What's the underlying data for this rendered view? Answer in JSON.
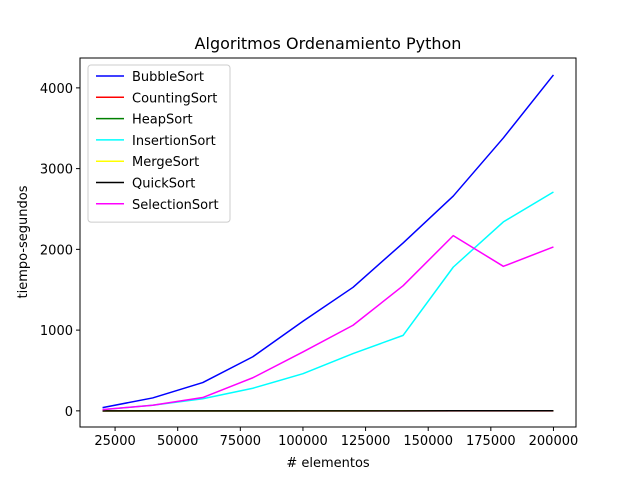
{
  "chart_data": {
    "type": "line",
    "title": "Algoritmos Ordenamiento Python",
    "xlabel": "# elementos",
    "ylabel": "tiempo-segundos",
    "xlim": [
      11000,
      209000
    ],
    "ylim": [
      -200,
      4370
    ],
    "xticks": [
      25000,
      50000,
      75000,
      100000,
      125000,
      150000,
      175000,
      200000
    ],
    "yticks": [
      0,
      1000,
      2000,
      3000,
      4000
    ],
    "grid": false,
    "legend_position": "top-left",
    "x": [
      20000,
      40000,
      60000,
      80000,
      100000,
      120000,
      140000,
      160000,
      180000,
      200000
    ],
    "series": [
      {
        "name": "BubbleSort",
        "color": "#0000ff",
        "values": [
          40,
          160,
          350,
          670,
          1110,
          1530,
          2080,
          2660,
          3380,
          4160
        ]
      },
      {
        "name": "CountingSort",
        "color": "#ff0000",
        "values": [
          0,
          0,
          0,
          0,
          0,
          0,
          0,
          0,
          0,
          0
        ]
      },
      {
        "name": "HeapSort",
        "color": "#008000",
        "values": [
          0,
          0,
          0,
          0,
          1,
          1,
          1,
          1,
          1,
          1
        ]
      },
      {
        "name": "InsertionSort",
        "color": "#00ffff",
        "values": [
          15,
          70,
          150,
          280,
          460,
          710,
          935,
          1780,
          2340,
          2710
        ]
      },
      {
        "name": "MergeSort",
        "color": "#ffff00",
        "values": [
          0,
          0,
          0,
          0,
          0,
          0,
          1,
          1,
          1,
          1
        ]
      },
      {
        "name": "QuickSort",
        "color": "#000000",
        "values": [
          0,
          0,
          0,
          0,
          0,
          0,
          0,
          1,
          1,
          1
        ]
      },
      {
        "name": "SelectionSort",
        "color": "#ff00ff",
        "values": [
          15,
          70,
          165,
          410,
          730,
          1060,
          1550,
          2170,
          1790,
          2030
        ]
      }
    ]
  }
}
